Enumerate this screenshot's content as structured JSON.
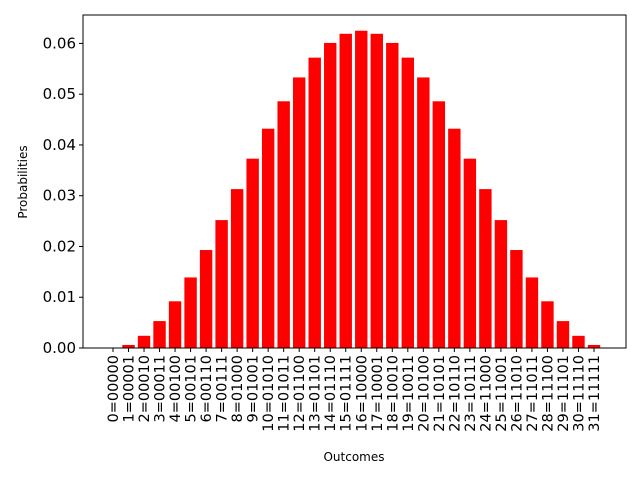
{
  "chart_data": {
    "type": "bar",
    "xlabel": "Outcomes",
    "ylabel": "Probabilities",
    "color": "#ff0000",
    "categories": [
      "0=00000",
      "1=00001",
      "2=00010",
      "3=00011",
      "4=00100",
      "5=00101",
      "6=00110",
      "7=00111",
      "8=01000",
      "9=01001",
      "10=01010",
      "11=01011",
      "12=01100",
      "13=01101",
      "14=01110",
      "15=01111",
      "16=10000",
      "17=10001",
      "18=10010",
      "19=10011",
      "20=10100",
      "21=10101",
      "22=10110",
      "23=10111",
      "24=11000",
      "25=11001",
      "26=11010",
      "27=11011",
      "28=11100",
      "29=11101",
      "30=11110",
      "31=11111"
    ],
    "values": [
      0,
      0.0006,
      0.0024,
      0.0053,
      0.0092,
      0.0139,
      0.0193,
      0.0252,
      0.0313,
      0.0373,
      0.0432,
      0.0486,
      0.0533,
      0.0572,
      0.0601,
      0.0619,
      0.0625,
      0.0619,
      0.0601,
      0.0572,
      0.0533,
      0.0486,
      0.0432,
      0.0373,
      0.0313,
      0.0252,
      0.0193,
      0.0139,
      0.0092,
      0.0053,
      0.0024,
      0.0006
    ],
    "ylim": [
      0,
      0.0656
    ],
    "yticks": [
      {
        "value": 0,
        "label": "0.00"
      },
      {
        "value": 0.01,
        "label": "0.01"
      },
      {
        "value": 0.02,
        "label": "0.02"
      },
      {
        "value": 0.03,
        "label": "0.03"
      },
      {
        "value": 0.04,
        "label": "0.04"
      },
      {
        "value": 0.05,
        "label": "0.05"
      },
      {
        "value": 0.06,
        "label": "0.06"
      }
    ]
  }
}
